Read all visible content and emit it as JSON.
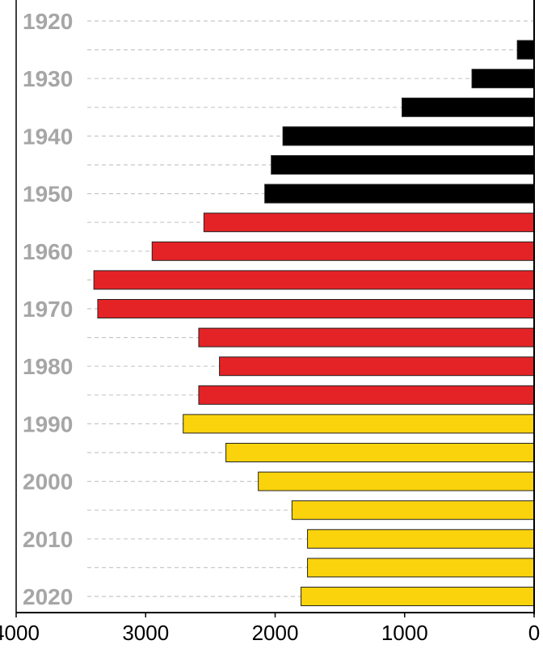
{
  "chart_data": {
    "type": "bar",
    "orientation": "horizontal",
    "x_reversed": true,
    "xlim": [
      0,
      4000
    ],
    "x_ticks": [
      4000,
      3000,
      2000,
      1000,
      0
    ],
    "x_tick_labels": [
      "4000",
      "3000",
      "2000",
      "1000",
      "0"
    ],
    "y_tick_labels": [
      "1920",
      "1930",
      "1940",
      "1950",
      "1960",
      "1970",
      "1980",
      "1990",
      "2000",
      "2010",
      "2020"
    ],
    "grid": "horizontal-dashed",
    "categories": [
      "1925",
      "1930",
      "1935",
      "1940",
      "1945",
      "1950",
      "1955",
      "1960",
      "1965",
      "1970",
      "1975",
      "1980",
      "1985",
      "1990",
      "1995",
      "2000",
      "2005",
      "2010",
      "2015",
      "2020"
    ],
    "values": [
      130,
      480,
      1020,
      1940,
      2030,
      2080,
      2550,
      2950,
      3400,
      3370,
      2590,
      2430,
      2590,
      2710,
      2380,
      2130,
      1870,
      1750,
      1750,
      1800
    ],
    "colors": {
      "black": "#000000",
      "red": "#e42327",
      "yellow": "#fbd30c",
      "tick_text": "#a6a6a6",
      "grid": "#c8c8c8",
      "axis": "#000000"
    },
    "bar_color_groups": [
      "black",
      "black",
      "black",
      "black",
      "black",
      "black",
      "red",
      "red",
      "red",
      "red",
      "red",
      "red",
      "red",
      "yellow",
      "yellow",
      "yellow",
      "yellow",
      "yellow",
      "yellow",
      "yellow"
    ]
  }
}
